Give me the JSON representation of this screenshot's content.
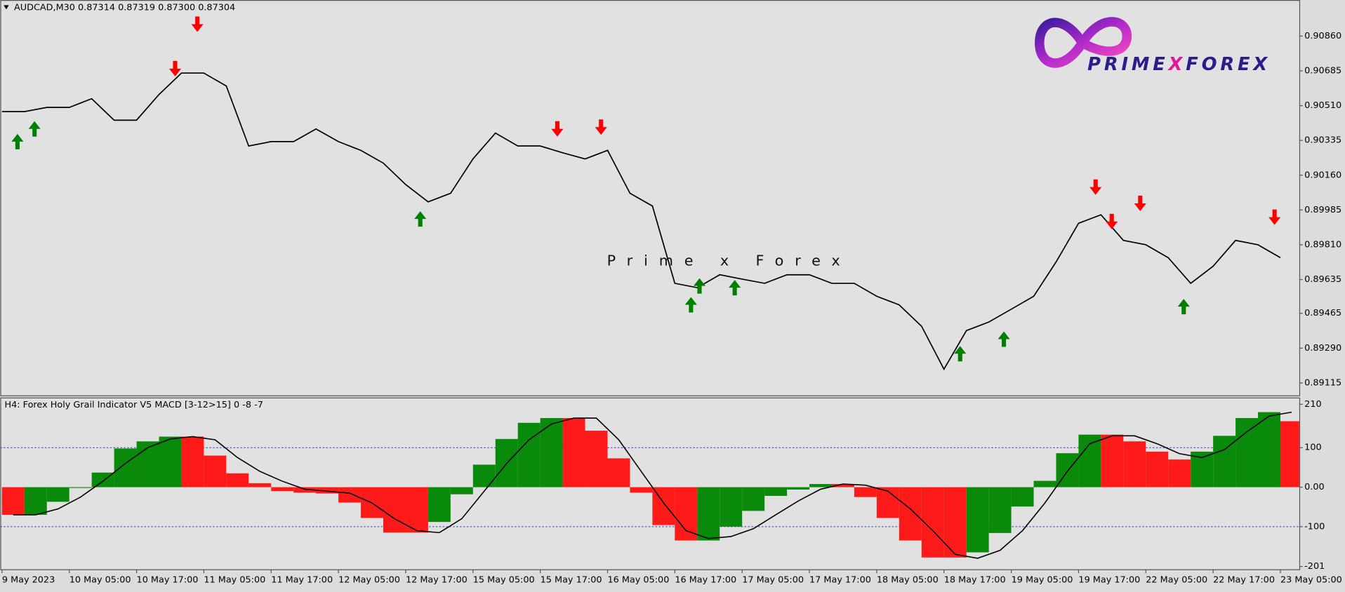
{
  "chart_data": [
    {
      "type": "line",
      "title": "AUDCAD,M30  0.87314 0.87319 0.87300 0.87304",
      "series": [
        {
          "color": "#000000",
          "values": [
            0.9048,
            0.9048,
            0.90501,
            0.90501,
            0.90545,
            0.90437,
            0.90437,
            0.90566,
            0.90674,
            0.90674,
            0.90609,
            0.90307,
            0.90329,
            0.90329,
            0.90393,
            0.90329,
            0.90285,
            0.90221,
            0.90113,
            0.90026,
            0.90069,
            0.90242,
            0.90372,
            0.90307,
            0.90307,
            0.90273,
            0.90242,
            0.90285,
            0.90069,
            0.90005,
            0.89616,
            0.89594,
            0.89659,
            0.89637,
            0.89616,
            0.89659,
            0.89659,
            0.89616,
            0.89616,
            0.89551,
            0.89508,
            0.894,
            0.89184,
            0.89378,
            0.89421,
            0.89486,
            0.89551,
            0.89724,
            0.89918,
            0.89961,
            0.89832,
            0.8981,
            0.89745,
            0.89616,
            0.89702,
            0.89832,
            0.8981,
            0.89745
          ]
        }
      ],
      "ylim": [
        0.8905,
        0.91033
      ],
      "yticks": [
        {
          "value": 0.9086,
          "label": "0.90860"
        },
        {
          "value": 0.90685,
          "label": "0.90685"
        },
        {
          "value": 0.9051,
          "label": "0.90510"
        },
        {
          "value": 0.90335,
          "label": "0.90335"
        },
        {
          "value": 0.9016,
          "label": "0.90160"
        },
        {
          "value": 0.89985,
          "label": "0.89985"
        },
        {
          "value": 0.8981,
          "label": "0.89810"
        },
        {
          "value": 0.89635,
          "label": "0.89635"
        },
        {
          "value": 0.89465,
          "label": "0.89465"
        },
        {
          "value": 0.8929,
          "label": "0.89290"
        },
        {
          "value": 0.89115,
          "label": "0.89115"
        }
      ],
      "signals": {
        "up": {
          "color": "#008000",
          "x": [
            0.69,
            1.45,
            18.65,
            30.72,
            31.1,
            32.67,
            42.72,
            44.67,
            52.69
          ],
          "y": [
            0.90329,
            0.90393,
            0.8994,
            0.89508,
            0.89603,
            0.89594,
            0.89262,
            0.89335,
            0.89499
          ]
        },
        "down": {
          "color": "#ff0000",
          "x": [
            8.71,
            7.72,
            24.76,
            26.71,
            48.76,
            49.48,
            50.75,
            56.74
          ],
          "y": [
            0.9092,
            0.90696,
            0.90393,
            0.90402,
            0.901,
            0.89927,
            0.90018,
            0.89949
          ]
        }
      }
    },
    {
      "type": "bar",
      "title": "H4: Forex Holy Grail Indicator V5 MACD [3-12>15] 0 -8 -7",
      "categories": [
        "9 May 2023",
        null,
        null,
        "10 May 05:00",
        null,
        null,
        "10 May 17:00",
        null,
        null,
        "11 May 05:00",
        null,
        null,
        "11 May 17:00",
        null,
        null,
        "12 May 05:00",
        null,
        null,
        "12 May 17:00",
        null,
        null,
        "15 May 05:00",
        null,
        null,
        "15 May 17:00",
        null,
        null,
        "16 May 05:00",
        null,
        null,
        "16 May 17:00",
        null,
        null,
        "17 May 05:00",
        null,
        null,
        "17 May 17:00",
        null,
        null,
        "18 May 05:00",
        null,
        null,
        "18 May 17:00",
        null,
        null,
        "19 May 05:00",
        null,
        null,
        "19 May 17:00",
        null,
        null,
        "22 May 05:00",
        null,
        null,
        "22 May 17:00",
        null,
        null,
        "23 May 05:00"
      ],
      "values": [
        -70,
        -70,
        -37,
        -2,
        37,
        98,
        116,
        128,
        128,
        80,
        35,
        10,
        -10,
        -14,
        -16,
        -39,
        -78,
        -115,
        -115,
        -88,
        -18,
        57,
        122,
        163,
        175,
        175,
        143,
        73,
        -14,
        -96,
        -135,
        -135,
        -100,
        -60,
        -22,
        -6,
        8,
        8,
        -25,
        -78,
        -135,
        -178,
        -178,
        -165,
        -116,
        -49,
        16,
        86,
        133,
        133,
        116,
        90,
        70,
        90,
        130,
        175,
        190,
        167
      ],
      "colors": [
        "#ff1a1a",
        "#0a8a0a",
        "#0a8a0a",
        "#0a8a0a",
        "#0a8a0a",
        "#0a8a0a",
        "#0a8a0a",
        "#0a8a0a",
        "#ff1a1a",
        "#ff1a1a",
        "#ff1a1a",
        "#ff1a1a",
        "#ff1a1a",
        "#ff1a1a",
        "#ff1a1a",
        "#ff1a1a",
        "#ff1a1a",
        "#ff1a1a",
        "#ff1a1a",
        "#0a8a0a",
        "#0a8a0a",
        "#0a8a0a",
        "#0a8a0a",
        "#0a8a0a",
        "#0a8a0a",
        "#ff1a1a",
        "#ff1a1a",
        "#ff1a1a",
        "#ff1a1a",
        "#ff1a1a",
        "#ff1a1a",
        "#0a8a0a",
        "#0a8a0a",
        "#0a8a0a",
        "#0a8a0a",
        "#0a8a0a",
        "#0a8a0a",
        "#ff1a1a",
        "#ff1a1a",
        "#ff1a1a",
        "#ff1a1a",
        "#ff1a1a",
        "#ff1a1a",
        "#0a8a0a",
        "#0a8a0a",
        "#0a8a0a",
        "#0a8a0a",
        "#0a8a0a",
        "#0a8a0a",
        "#ff1a1a",
        "#ff1a1a",
        "#ff1a1a",
        "#ff1a1a",
        "#0a8a0a",
        "#0a8a0a",
        "#0a8a0a",
        "#0a8a0a",
        "#ff1a1a"
      ],
      "signal": {
        "color": "#000000",
        "values": [
          -70,
          -70,
          -55,
          -25,
          15,
          60,
          100,
          122,
          128,
          120,
          75,
          40,
          15,
          -5,
          -10,
          -15,
          -40,
          -80,
          -110,
          -115,
          -80,
          -10,
          60,
          120,
          160,
          175,
          175,
          120,
          40,
          -40,
          -110,
          -130,
          -125,
          -105,
          -70,
          -35,
          -5,
          8,
          5,
          -10,
          -55,
          -110,
          -170,
          -180,
          -160,
          -110,
          -40,
          40,
          110,
          130,
          130,
          110,
          85,
          75,
          95,
          140,
          180,
          190
        ]
      },
      "ylim": [
        -209,
        227
      ],
      "yticks": [
        210,
        100,
        {
          "value": 0,
          "label": "0.00"
        },
        -100,
        -201
      ],
      "levels": [
        100,
        -100
      ],
      "level_color": "#3333cc"
    }
  ],
  "watermark": "Prime x Forex",
  "logo": {
    "parts": [
      "PRIME",
      "X",
      "FOREX"
    ],
    "colors": [
      "#2b1b8c",
      "#e0189a",
      "#2b1b8c"
    ]
  }
}
